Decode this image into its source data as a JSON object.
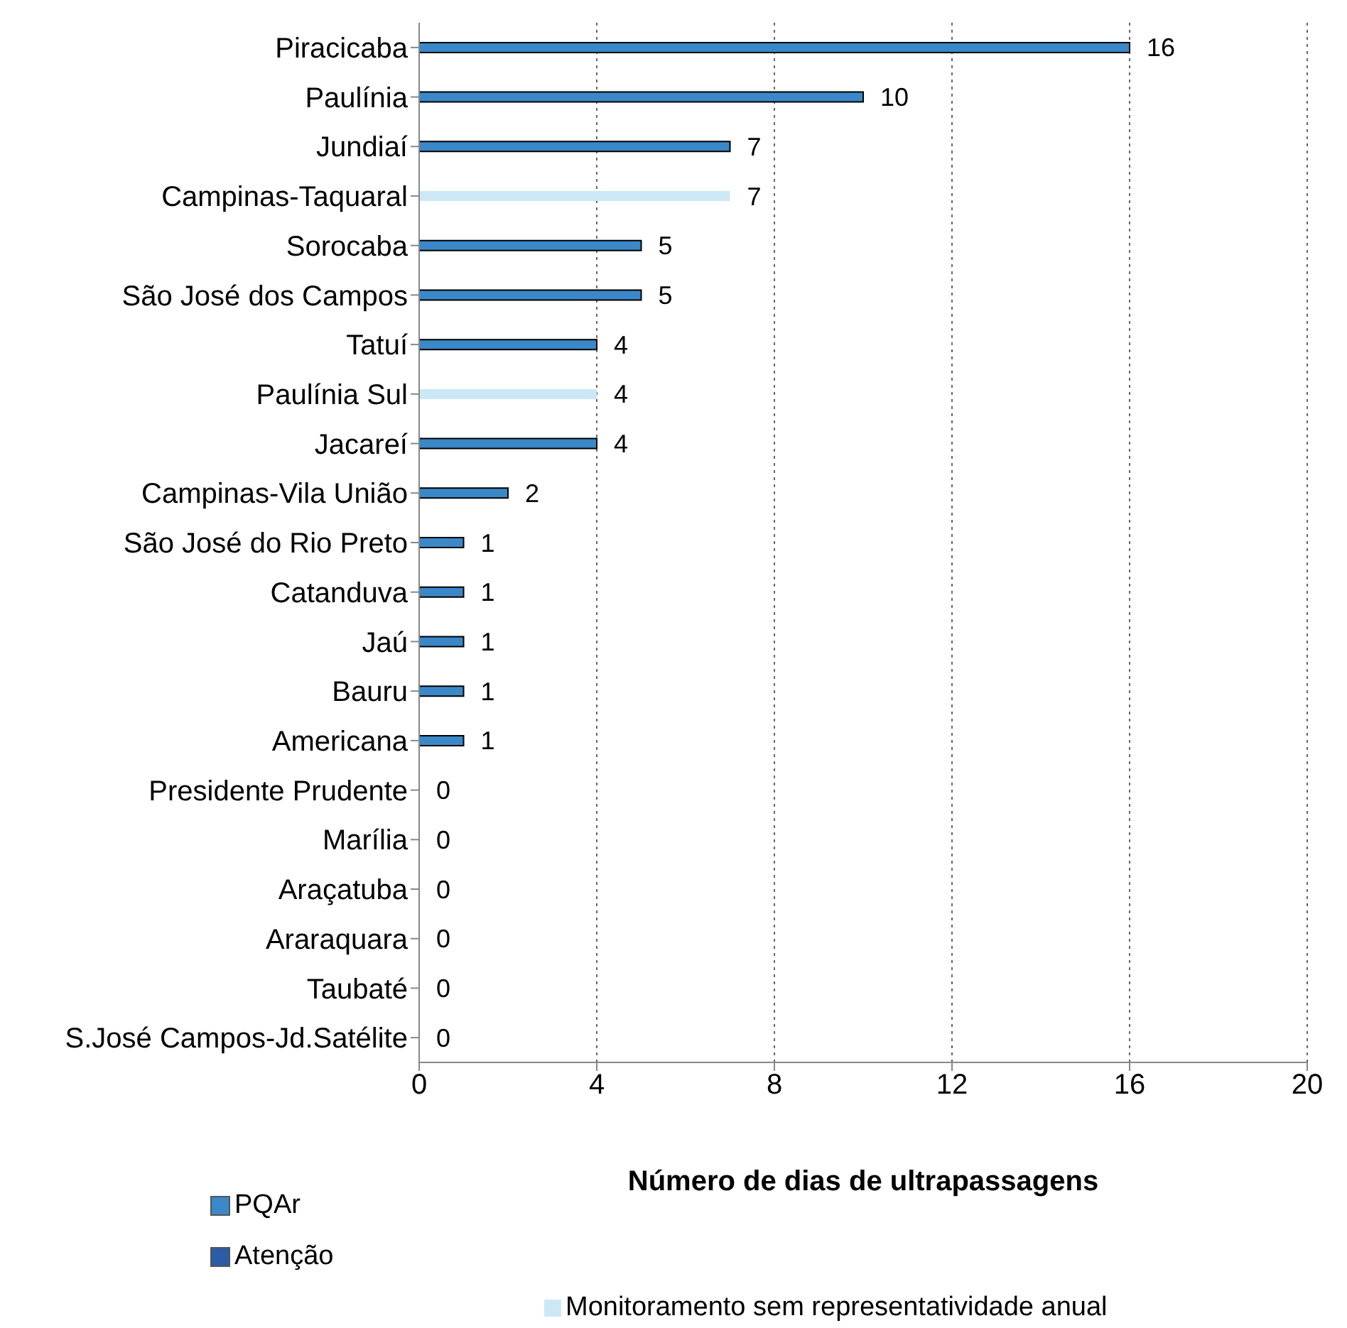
{
  "chart_data": {
    "type": "bar",
    "orientation": "horizontal",
    "stacked": true,
    "xlabel": "Número de dias de ultrapassagens",
    "categories": [
      "Piracicaba",
      "Paulínia",
      "Jundiaí",
      "Campinas-Taquaral",
      "Sorocaba",
      "São José dos Campos",
      "Tatuí",
      "Paulínia Sul",
      "Jacareí",
      "Campinas-Vila União",
      "São José do Rio Preto",
      "Catanduva",
      "Jaú",
      "Bauru",
      "Americana",
      "Presidente Prudente",
      "Marília",
      "Araçatuba",
      "Araraquara",
      "Taubaté",
      "S.José Campos-Jd.Satélite"
    ],
    "series": [
      {
        "name": "PQAr",
        "color": "#3b88c9",
        "values": [
          16,
          10,
          7,
          null,
          5,
          5,
          4,
          null,
          4,
          2,
          1,
          1,
          1,
          1,
          1,
          0,
          0,
          0,
          0,
          0,
          0
        ]
      },
      {
        "name": "Atenção",
        "color": "#2a5ca8",
        "values": [
          null,
          null,
          null,
          null,
          null,
          null,
          null,
          null,
          null,
          null,
          null,
          null,
          null,
          null,
          null,
          null,
          null,
          null,
          null,
          null,
          null
        ]
      },
      {
        "name": "Monitoramento sem representatividade anual",
        "color": "#cce8f7",
        "values": [
          null,
          null,
          null,
          7,
          null,
          null,
          null,
          4,
          null,
          null,
          null,
          null,
          null,
          null,
          null,
          null,
          null,
          null,
          null,
          null,
          null
        ]
      }
    ],
    "xlim": [
      0,
      20
    ],
    "xticks": [
      0,
      4,
      8,
      12,
      16,
      20
    ],
    "grid": "x",
    "legend": "bottom",
    "data_labels": true
  }
}
